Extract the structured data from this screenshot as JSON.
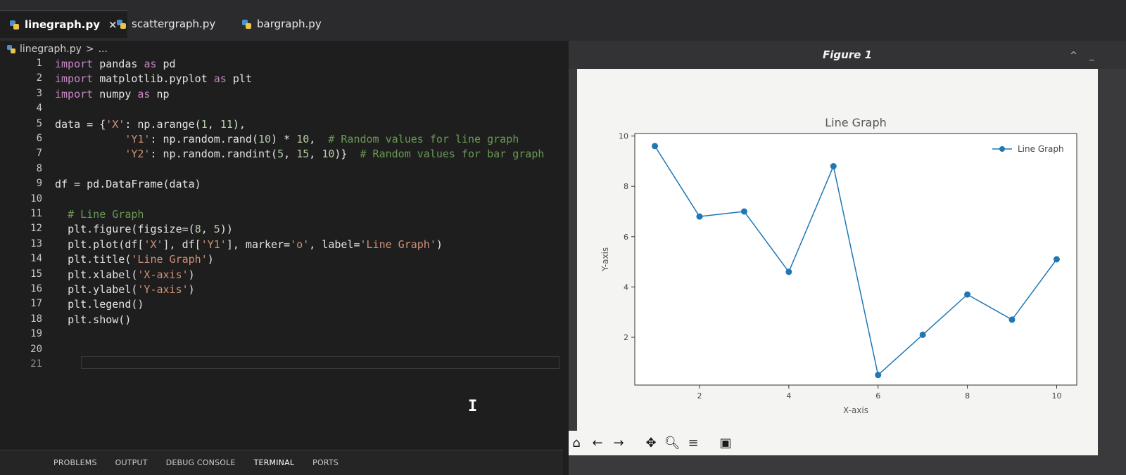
{
  "tabs": [
    {
      "label": "linegraph.py",
      "active": true
    },
    {
      "label": "scattergraph.py",
      "active": false
    },
    {
      "label": "bargraph.py",
      "active": false
    }
  ],
  "close_glyph": "×",
  "breadcrumb": {
    "file": "linegraph.py",
    "sep": ">",
    "more": "..."
  },
  "code_lines": [
    {
      "n": "1",
      "indent": 0,
      "parts": [
        [
          "kw",
          "import"
        ],
        [
          "t",
          " pandas "
        ],
        [
          "kw",
          "as"
        ],
        [
          "t",
          " pd"
        ]
      ]
    },
    {
      "n": "2",
      "indent": 0,
      "parts": [
        [
          "kw",
          "import"
        ],
        [
          "t",
          " matplotlib.pyplot "
        ],
        [
          "kw",
          "as"
        ],
        [
          "t",
          " plt"
        ]
      ]
    },
    {
      "n": "3",
      "indent": 0,
      "parts": [
        [
          "kw",
          "import"
        ],
        [
          "t",
          " numpy "
        ],
        [
          "kw",
          "as"
        ],
        [
          "t",
          " np"
        ]
      ]
    },
    {
      "n": "4",
      "indent": 0,
      "parts": []
    },
    {
      "n": "5",
      "indent": 0,
      "parts": [
        [
          "t",
          "data = {"
        ],
        [
          "str",
          "'X'"
        ],
        [
          "t",
          ": np.arange("
        ],
        [
          "num",
          "1"
        ],
        [
          "t",
          ", "
        ],
        [
          "num",
          "11"
        ],
        [
          "t",
          "),"
        ]
      ]
    },
    {
      "n": "6",
      "indent": 11,
      "parts": [
        [
          "str",
          "'Y1'"
        ],
        [
          "t",
          ": np.random.rand("
        ],
        [
          "num",
          "10"
        ],
        [
          "t",
          ") * "
        ],
        [
          "num",
          "10"
        ],
        [
          "t",
          ",  "
        ],
        [
          "cm",
          "# Random values for line graph"
        ]
      ]
    },
    {
      "n": "7",
      "indent": 11,
      "parts": [
        [
          "str",
          "'Y2'"
        ],
        [
          "t",
          ": np.random.randint("
        ],
        [
          "num",
          "5"
        ],
        [
          "t",
          ", "
        ],
        [
          "num",
          "15"
        ],
        [
          "t",
          ", "
        ],
        [
          "num",
          "10"
        ],
        [
          "t",
          ")}  "
        ],
        [
          "cm",
          "# Random values for bar graph"
        ]
      ]
    },
    {
      "n": "8",
      "indent": 0,
      "parts": []
    },
    {
      "n": "9",
      "indent": 0,
      "parts": [
        [
          "t",
          "df = pd.DataFrame(data)"
        ]
      ]
    },
    {
      "n": "10",
      "indent": 0,
      "parts": []
    },
    {
      "n": "11",
      "indent": 2,
      "parts": [
        [
          "cm",
          "# Line Graph"
        ]
      ]
    },
    {
      "n": "12",
      "indent": 2,
      "parts": [
        [
          "t",
          "plt.figure(figsize=("
        ],
        [
          "num",
          "8"
        ],
        [
          "t",
          ", "
        ],
        [
          "num",
          "5"
        ],
        [
          "t",
          "))"
        ]
      ]
    },
    {
      "n": "13",
      "indent": 2,
      "parts": [
        [
          "t",
          "plt.plot(df["
        ],
        [
          "str",
          "'X'"
        ],
        [
          "t",
          "], df["
        ],
        [
          "str",
          "'Y1'"
        ],
        [
          "t",
          "], marker="
        ],
        [
          "str",
          "'o'"
        ],
        [
          "t",
          ", label="
        ],
        [
          "str",
          "'Line Graph'"
        ],
        [
          "t",
          ")"
        ]
      ]
    },
    {
      "n": "14",
      "indent": 2,
      "parts": [
        [
          "t",
          "plt.title("
        ],
        [
          "str",
          "'Line Graph'"
        ],
        [
          "t",
          ")"
        ]
      ]
    },
    {
      "n": "15",
      "indent": 2,
      "parts": [
        [
          "t",
          "plt.xlabel("
        ],
        [
          "str",
          "'X-axis'"
        ],
        [
          "t",
          ")"
        ]
      ]
    },
    {
      "n": "16",
      "indent": 2,
      "parts": [
        [
          "t",
          "plt.ylabel("
        ],
        [
          "str",
          "'Y-axis'"
        ],
        [
          "t",
          ")"
        ]
      ]
    },
    {
      "n": "17",
      "indent": 2,
      "parts": [
        [
          "t",
          "plt.legend()"
        ]
      ]
    },
    {
      "n": "18",
      "indent": 2,
      "parts": [
        [
          "t",
          "plt.show()"
        ]
      ]
    },
    {
      "n": "19",
      "indent": 0,
      "parts": []
    },
    {
      "n": "20",
      "indent": 0,
      "parts": []
    },
    {
      "n": "21",
      "indent": 0,
      "parts": []
    }
  ],
  "panel_tabs": [
    "PROBLEMS",
    "OUTPUT",
    "DEBUG CONSOLE",
    "TERMINAL",
    "PORTS"
  ],
  "figure_window": {
    "title": "Figure 1"
  },
  "toolbar_icons": [
    "home-icon",
    "back-arrow-icon",
    "forward-arrow-icon",
    "pan-icon",
    "zoom-icon",
    "configure-subplots-icon",
    "save-icon"
  ],
  "colors": {
    "line": "#1f77b4",
    "axes_bg": "#ffffff",
    "editor_bg": "#1e1e1e"
  },
  "chart_data": {
    "type": "line",
    "title": "Line Graph",
    "xlabel": "X-axis",
    "ylabel": "Y-axis",
    "xlim": [
      0.55,
      10.45
    ],
    "ylim": [
      0.1,
      10.1
    ],
    "xticks": [
      2,
      4,
      6,
      8,
      10
    ],
    "yticks": [
      2,
      4,
      6,
      8,
      10
    ],
    "legend": "top-right",
    "grid": false,
    "series": [
      {
        "name": "Line Graph",
        "marker": "o",
        "x": [
          1,
          2,
          3,
          4,
          5,
          6,
          7,
          8,
          9,
          10
        ],
        "y": [
          9.6,
          6.8,
          7.0,
          4.6,
          8.8,
          0.5,
          2.1,
          3.7,
          2.7,
          5.1
        ]
      }
    ]
  }
}
